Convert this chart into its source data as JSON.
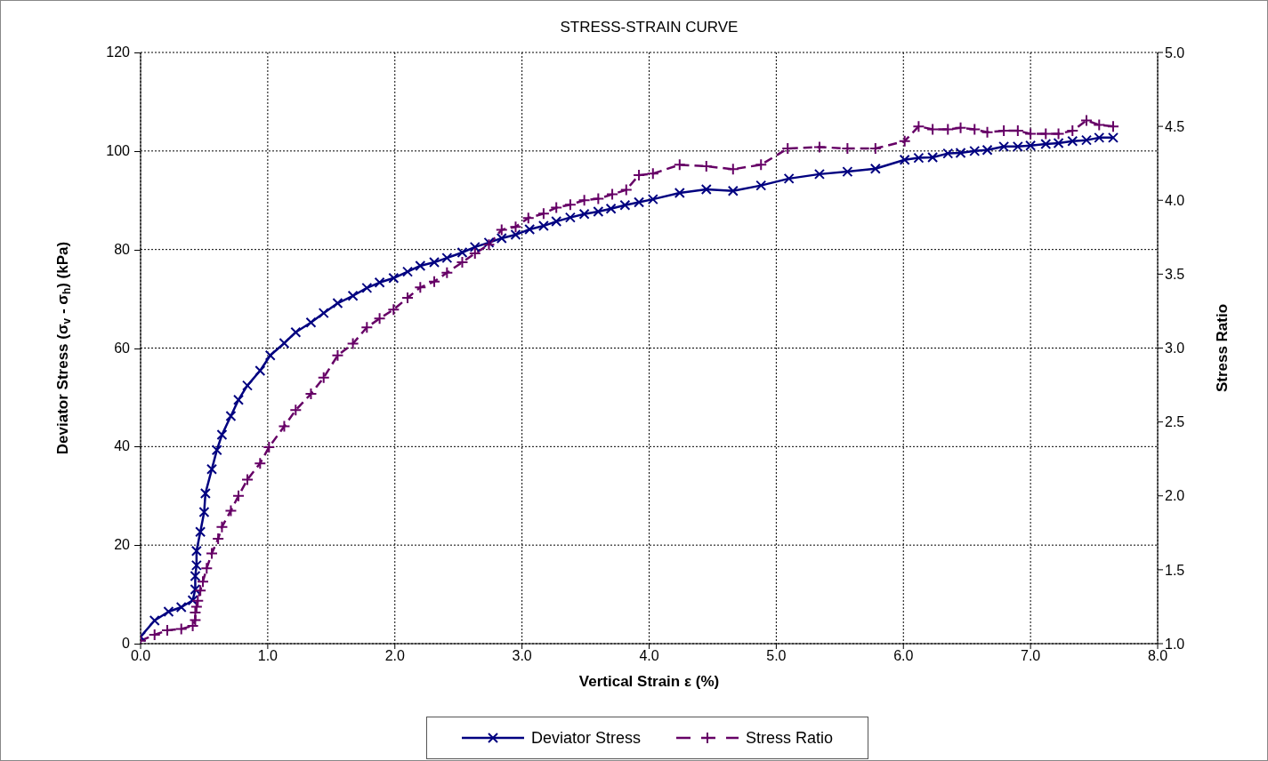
{
  "chart_data": {
    "type": "line",
    "title": "STRESS-STRAIN CURVE",
    "xlabel": "Vertical Strain ε (%)",
    "ylabel": "Deviator Stress (σ$_{v}$ - σ$_{h}$) (kPa)",
    "y2label": "Stress Ratio",
    "xlim": [
      0,
      8
    ],
    "xticks": [
      {
        "value": 0,
        "label": "0.0"
      },
      {
        "value": 1,
        "label": "1.0"
      },
      {
        "value": 2,
        "label": "2.0"
      },
      {
        "value": 3,
        "label": "3.0"
      },
      {
        "value": 4,
        "label": "4.0"
      },
      {
        "value": 5,
        "label": "5.0"
      },
      {
        "value": 6,
        "label": "6.0"
      },
      {
        "value": 7,
        "label": "7.0"
      },
      {
        "value": 8,
        "label": "8.0"
      }
    ],
    "ylim": [
      0,
      120
    ],
    "yticks": [
      0,
      20,
      40,
      60,
      80,
      100,
      120
    ],
    "y2lim": [
      1,
      5
    ],
    "y2ticks": [
      {
        "value": 1,
        "label": "1.0"
      },
      {
        "value": 1.5,
        "label": "1.5"
      },
      {
        "value": 2,
        "label": "2.0"
      },
      {
        "value": 2.5,
        "label": "2.5"
      },
      {
        "value": 3,
        "label": "3.0"
      },
      {
        "value": 3.5,
        "label": "3.5"
      },
      {
        "value": 4,
        "label": "4.0"
      },
      {
        "value": 4.5,
        "label": "4.5"
      },
      {
        "value": 5,
        "label": "5.0"
      }
    ],
    "grid": true,
    "legend": "bottom",
    "marker": "cross",
    "series": [
      {
        "name": "Deviator Stress",
        "color": "#000080",
        "line_style": "solid",
        "x": [
          0,
          0.11,
          0.22,
          0.32,
          0.41,
          0.43,
          0.43,
          0.44,
          0.44,
          0.47,
          0.5,
          0.51,
          0.56,
          0.6,
          0.64,
          0.71,
          0.77,
          0.84,
          0.94,
          1.02,
          1.13,
          1.22,
          1.34,
          1.44,
          1.55,
          1.67,
          1.78,
          1.88,
          1.99,
          2.1,
          2.2,
          2.31,
          2.41,
          2.53,
          2.63,
          2.74,
          2.84,
          2.95,
          3.06,
          3.17,
          3.27,
          3.38,
          3.49,
          3.6,
          3.7,
          3.81,
          3.92,
          4.03,
          4.24,
          4.45,
          4.66,
          4.88,
          5.1,
          5.34,
          5.56,
          5.78,
          6.01,
          6.12,
          6.23,
          6.35,
          6.45,
          6.56,
          6.66,
          6.79,
          6.9,
          7.0,
          7.12,
          7.22,
          7.33,
          7.44,
          7.54,
          7.65
        ],
        "values": [
          1.4,
          4.7,
          6.5,
          7.4,
          8.8,
          11,
          13.7,
          15.9,
          18.8,
          22.7,
          26.7,
          30.5,
          35.4,
          39.3,
          42.4,
          46.2,
          49.5,
          52.4,
          55.4,
          58.5,
          61,
          63.2,
          65.2,
          67.1,
          69.1,
          70.6,
          72.2,
          73.3,
          74.2,
          75.5,
          76.7,
          77.4,
          78.3,
          79.4,
          80.5,
          81.4,
          82.3,
          83,
          84.1,
          84.8,
          85.7,
          86.5,
          87.2,
          87.7,
          88.3,
          89,
          89.6,
          90.2,
          91.5,
          92.2,
          91.9,
          93,
          94.4,
          95.3,
          95.8,
          96.4,
          98.2,
          98.6,
          98.7,
          99.5,
          99.6,
          100,
          100.2,
          100.9,
          100.9,
          101.1,
          101.4,
          101.6,
          102,
          102.2,
          102.7,
          102.7
        ]
      },
      {
        "name": "Stress Ratio",
        "color": "#660066",
        "line_style": "dashed",
        "axis": "y2",
        "x": [
          0,
          0.11,
          0.21,
          0.32,
          0.41,
          0.43,
          0.43,
          0.44,
          0.45,
          0.47,
          0.49,
          0.52,
          0.56,
          0.61,
          0.64,
          0.71,
          0.77,
          0.84,
          0.94,
          1.01,
          1.13,
          1.22,
          1.34,
          1.44,
          1.55,
          1.67,
          1.78,
          1.88,
          1.99,
          2.1,
          2.2,
          2.31,
          2.41,
          2.53,
          2.63,
          2.74,
          2.84,
          2.95,
          3.05,
          3.17,
          3.27,
          3.38,
          3.49,
          3.6,
          3.71,
          3.82,
          3.92,
          4.03,
          4.24,
          4.45,
          4.66,
          4.88,
          5.09,
          5.34,
          5.56,
          5.78,
          6.01,
          6.12,
          6.23,
          6.35,
          6.45,
          6.56,
          6.66,
          6.79,
          6.9,
          7.0,
          7.12,
          7.22,
          7.33,
          7.44,
          7.54,
          7.65
        ],
        "values": [
          1.02,
          1.06,
          1.09,
          1.1,
          1.12,
          1.16,
          1.21,
          1.25,
          1.29,
          1.36,
          1.42,
          1.51,
          1.61,
          1.71,
          1.79,
          1.9,
          2.0,
          2.11,
          2.22,
          2.33,
          2.47,
          2.58,
          2.69,
          2.8,
          2.95,
          3.03,
          3.14,
          3.2,
          3.26,
          3.34,
          3.41,
          3.45,
          3.51,
          3.58,
          3.64,
          3.7,
          3.8,
          3.82,
          3.88,
          3.91,
          3.95,
          3.97,
          4.0,
          4.01,
          4.04,
          4.07,
          4.17,
          4.18,
          4.24,
          4.23,
          4.21,
          4.24,
          4.35,
          4.36,
          4.35,
          4.35,
          4.4,
          4.5,
          4.48,
          4.48,
          4.49,
          4.48,
          4.46,
          4.47,
          4.47,
          4.45,
          4.45,
          4.45,
          4.47,
          4.54,
          4.51,
          4.5
        ]
      }
    ]
  }
}
